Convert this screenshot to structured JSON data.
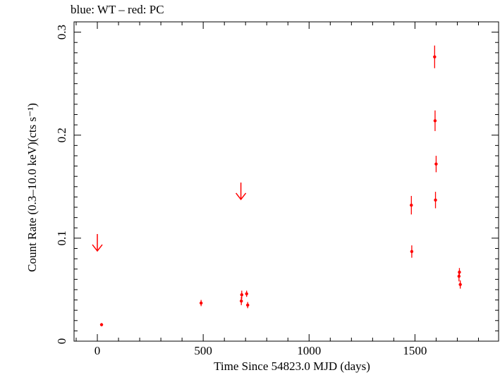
{
  "header": {
    "caption": "blue: WT – red: PC"
  },
  "chart_data": {
    "type": "scatter",
    "xlabel": "Time Since 54823.0 MJD (days)",
    "ylabel": "Count Rate (0.3–10.0 keV)(cts s⁻¹)",
    "xlim": [
      -110,
      1895
    ],
    "ylim": [
      0,
      0.31
    ],
    "xticks": [
      0,
      500,
      1000,
      1500
    ],
    "yticks": [
      0,
      0.1,
      0.2,
      0.3
    ],
    "ytick_labels": [
      "0",
      "0.1",
      "0.2",
      "0.3"
    ],
    "colors": {
      "pc": "#ff0000",
      "wt": "#0000ff",
      "axes": "#000000"
    },
    "series": [
      {
        "name": "PC",
        "points": [
          {
            "x": 20,
            "y": 0.016,
            "yerr": 0.0015
          },
          {
            "x": 490,
            "y": 0.037,
            "yerr": 0.003
          },
          {
            "x": 680,
            "y": 0.039,
            "yerr": 0.004
          },
          {
            "x": 682,
            "y": 0.045,
            "yerr": 0.004
          },
          {
            "x": 705,
            "y": 0.046,
            "yerr": 0.003
          },
          {
            "x": 710,
            "y": 0.035,
            "yerr": 0.003
          },
          {
            "x": 1483,
            "y": 0.132,
            "yerr": 0.009
          },
          {
            "x": 1485,
            "y": 0.087,
            "yerr": 0.006
          },
          {
            "x": 1593,
            "y": 0.276,
            "yerr": 0.011
          },
          {
            "x": 1595,
            "y": 0.214,
            "yerr": 0.01
          },
          {
            "x": 1597,
            "y": 0.137,
            "yerr": 0.008
          },
          {
            "x": 1600,
            "y": 0.172,
            "yerr": 0.008
          },
          {
            "x": 1708,
            "y": 0.063,
            "yerr": 0.005
          },
          {
            "x": 1710,
            "y": 0.067,
            "yerr": 0.004
          },
          {
            "x": 1714,
            "y": 0.055,
            "yerr": 0.004
          }
        ],
        "upper_limits": [
          {
            "x": 0,
            "y": 0.104
          },
          {
            "x": 678,
            "y": 0.154
          }
        ]
      }
    ]
  }
}
